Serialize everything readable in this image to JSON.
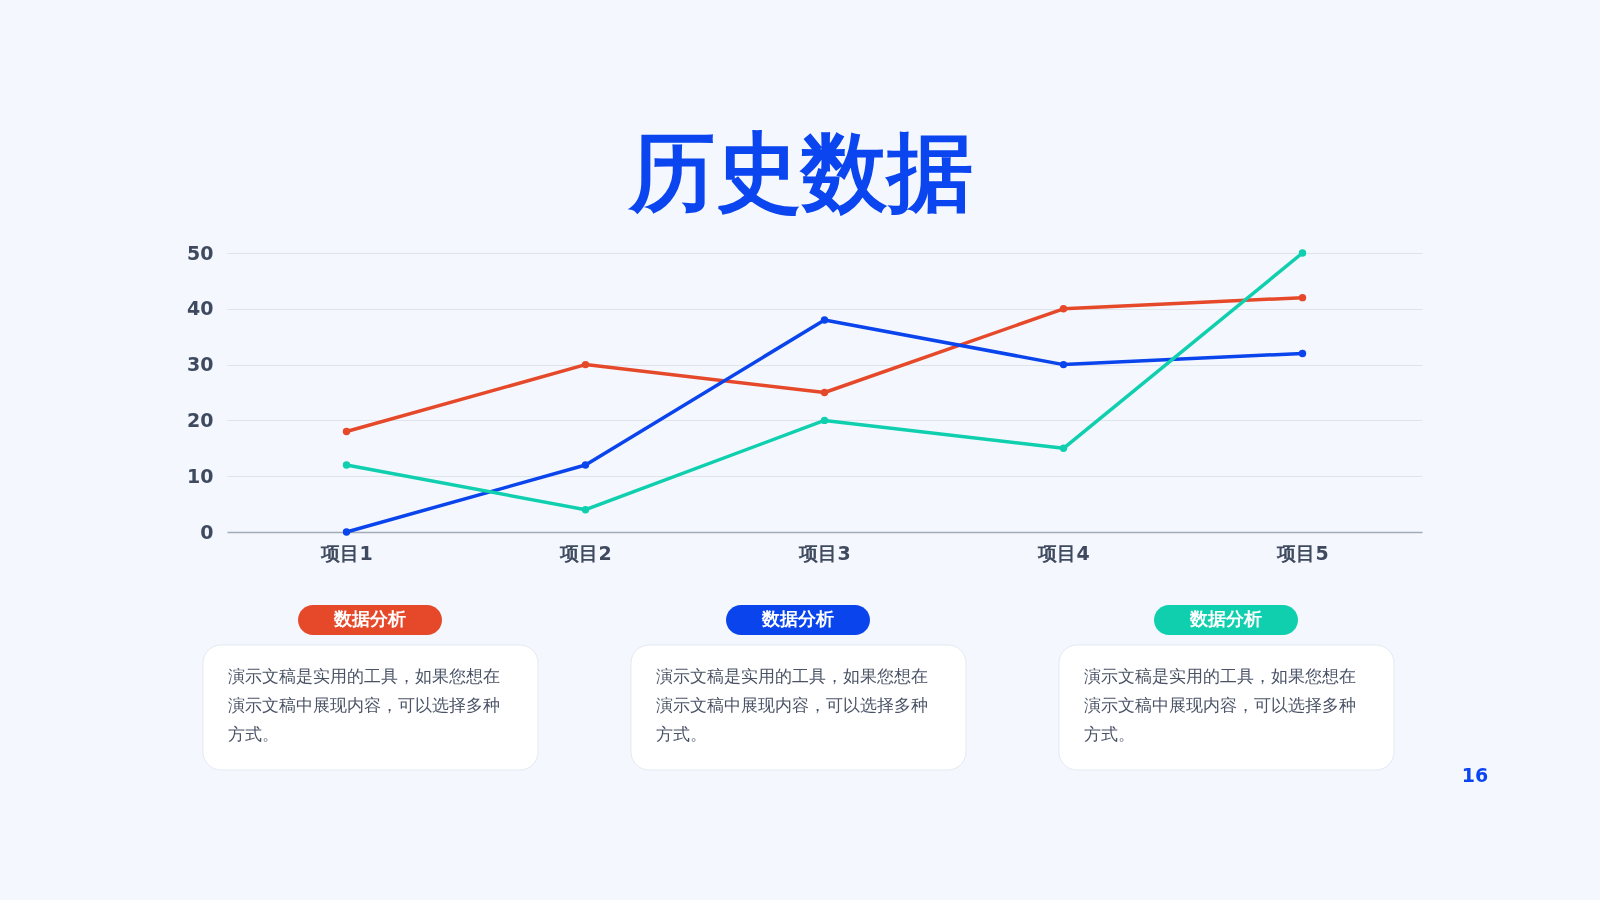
{
  "chart_data": {
    "type": "line",
    "title": "历史数据",
    "categories": [
      "项目1",
      "项目2",
      "项目3",
      "项目4",
      "项目5"
    ],
    "series": [
      {
        "color": "#e5492a",
        "values": [
          18,
          30,
          25,
          40,
          42
        ]
      },
      {
        "color": "#0a44ec",
        "values": [
          0,
          12,
          38,
          30,
          32
        ]
      },
      {
        "color": "#0fcfae",
        "values": [
          12,
          4,
          20,
          15,
          50
        ]
      }
    ],
    "ylim": [
      0,
      50
    ],
    "yticks": [
      0,
      10,
      20,
      30,
      40,
      50
    ],
    "grid": "y",
    "marker": "circle",
    "line_style": "solid",
    "annotations": [
      "数据分析",
      "演示文稿是实用的工具，如果您想在演示文稿中展现内容，可以选择多种方式。",
      "数据分析",
      "演示文稿是实用的工具，如果您想在演示文稿中展现内容，可以选择多种方式。",
      "数据分析",
      "演示文稿是实用的工具，如果您想在演示文稿中展现内容，可以选择多种方式。",
      "16"
    ]
  }
}
